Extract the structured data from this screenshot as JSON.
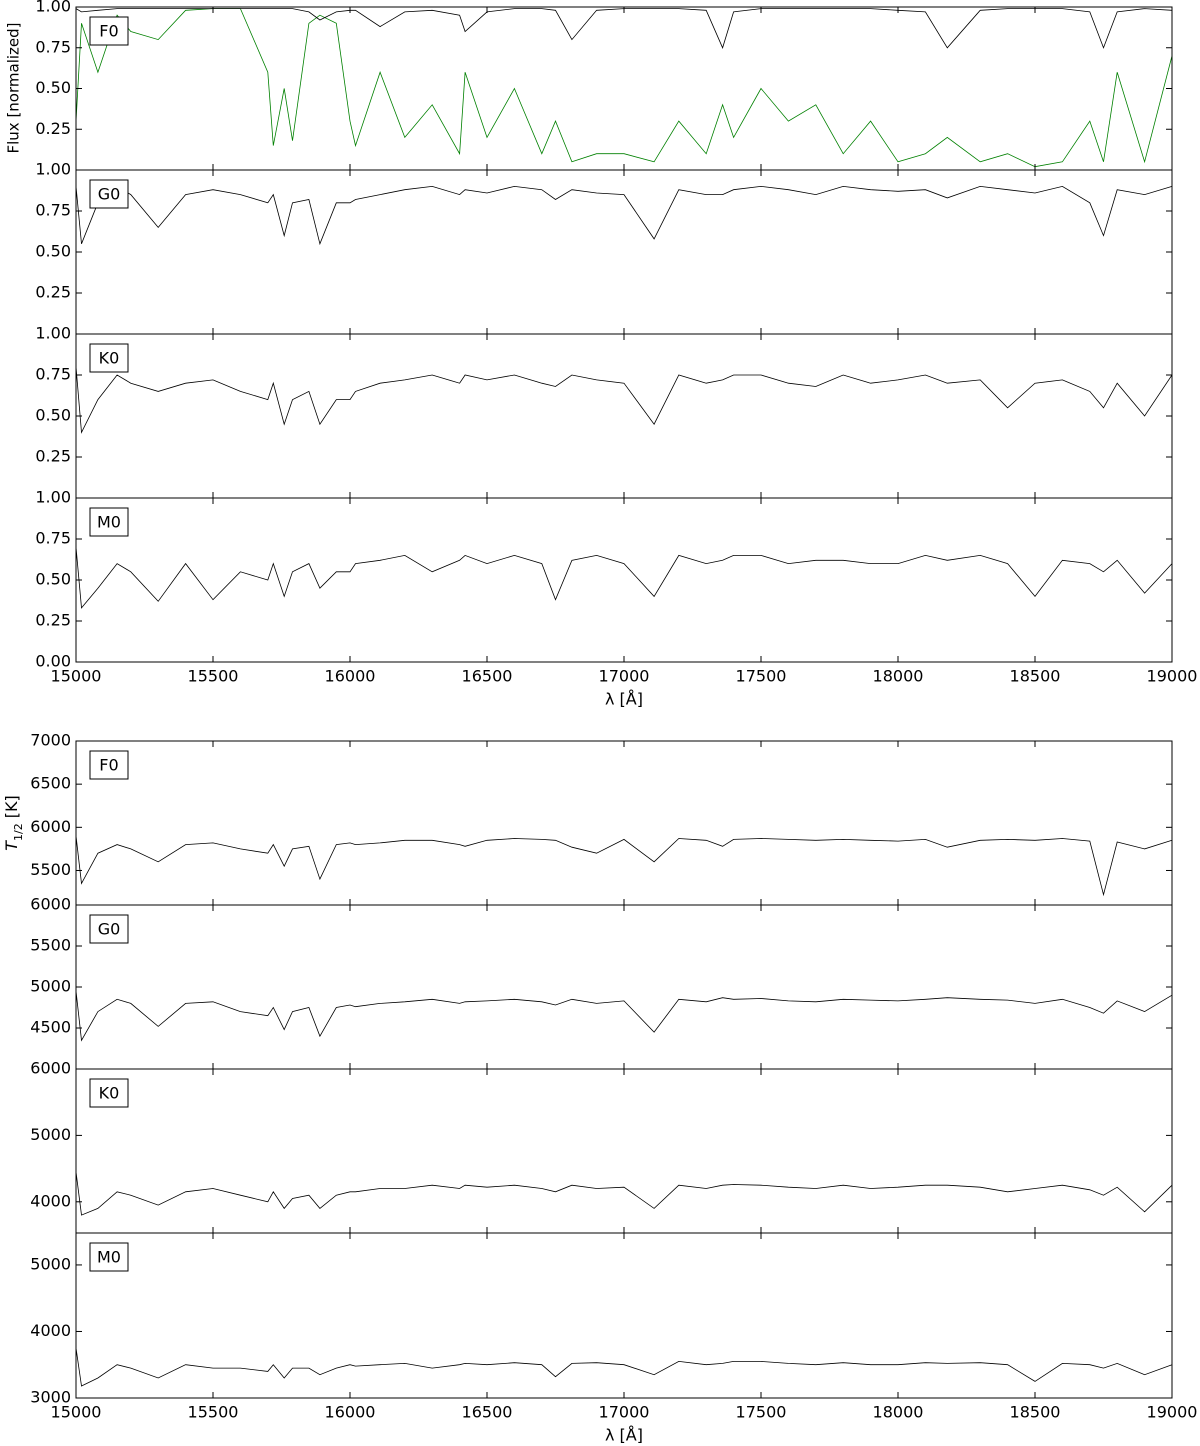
{
  "chart_data": [
    {
      "type": "line",
      "label": "F0",
      "ylabel": "Flux [normalized]",
      "x": [
        15000,
        15020,
        15080,
        15150,
        15200,
        15300,
        15400,
        15500,
        15600,
        15700,
        15720,
        15760,
        15790,
        15850,
        15890,
        15950,
        16000,
        16020,
        16110,
        16200,
        16300,
        16400,
        16420,
        16500,
        16600,
        16700,
        16750,
        16810,
        16900,
        17000,
        17110,
        17200,
        17300,
        17360,
        17400,
        17500,
        17600,
        17700,
        17800,
        17900,
        18000,
        18100,
        18180,
        18300,
        18400,
        18500,
        18600,
        18700,
        18750,
        18800,
        18900,
        19000
      ],
      "series": [
        {
          "color": "#008000",
          "values": [
            0.3,
            0.9,
            0.6,
            0.95,
            0.85,
            0.8,
            0.98,
            0.99,
            0.99,
            0.6,
            0.15,
            0.5,
            0.18,
            0.9,
            0.95,
            0.9,
            0.3,
            0.15,
            0.6,
            0.2,
            0.4,
            0.1,
            0.6,
            0.2,
            0.5,
            0.1,
            0.3,
            0.05,
            0.1,
            0.1,
            0.05,
            0.3,
            0.1,
            0.4,
            0.2,
            0.5,
            0.3,
            0.4,
            0.1,
            0.3,
            0.05,
            0.1,
            0.2,
            0.05,
            0.1,
            0.02,
            0.05,
            0.3,
            0.05,
            0.6,
            0.05,
            0.7
          ]
        },
        {
          "color": "#000000",
          "values": [
            0.99,
            0.97,
            0.98,
            0.99,
            0.99,
            0.99,
            0.99,
            0.99,
            0.99,
            0.99,
            0.99,
            0.99,
            0.99,
            0.97,
            0.92,
            0.97,
            0.98,
            0.98,
            0.88,
            0.97,
            0.98,
            0.95,
            0.85,
            0.97,
            0.99,
            0.99,
            0.98,
            0.8,
            0.98,
            0.99,
            0.99,
            0.99,
            0.98,
            0.75,
            0.97,
            0.99,
            0.99,
            0.99,
            0.99,
            0.99,
            0.98,
            0.97,
            0.75,
            0.98,
            0.99,
            0.99,
            0.99,
            0.97,
            0.75,
            0.97,
            0.99,
            0.98
          ]
        }
      ],
      "xlim": [
        15000,
        19000
      ],
      "xticks": [
        15000,
        15500,
        16000,
        16500,
        17000,
        17500,
        18000,
        18500,
        19000
      ],
      "ylim": [
        0,
        1
      ],
      "yticks": [
        0.25,
        {
          "value": 0.5,
          "label": "0.50"
        },
        0.75,
        {
          "value": 1,
          "label": "1.00"
        }
      ]
    },
    {
      "type": "line",
      "label": "G0",
      "x": [
        15000,
        15020,
        15080,
        15150,
        15200,
        15300,
        15400,
        15500,
        15600,
        15700,
        15720,
        15760,
        15790,
        15850,
        15890,
        15950,
        16000,
        16020,
        16110,
        16200,
        16300,
        16400,
        16420,
        16500,
        16600,
        16700,
        16750,
        16810,
        16900,
        17000,
        17110,
        17200,
        17300,
        17360,
        17400,
        17500,
        17600,
        17700,
        17800,
        17900,
        18000,
        18100,
        18180,
        18300,
        18400,
        18500,
        18600,
        18700,
        18750,
        18800,
        18900,
        19000
      ],
      "series": [
        {
          "color": "#000000",
          "values": [
            0.9,
            0.55,
            0.8,
            0.9,
            0.85,
            0.65,
            0.85,
            0.88,
            0.85,
            0.8,
            0.85,
            0.6,
            0.8,
            0.82,
            0.55,
            0.8,
            0.8,
            0.82,
            0.85,
            0.88,
            0.9,
            0.85,
            0.88,
            0.86,
            0.9,
            0.88,
            0.82,
            0.88,
            0.86,
            0.85,
            0.58,
            0.88,
            0.85,
            0.85,
            0.88,
            0.9,
            0.88,
            0.85,
            0.9,
            0.88,
            0.87,
            0.88,
            0.83,
            0.9,
            0.88,
            0.86,
            0.9,
            0.8,
            0.6,
            0.88,
            0.85,
            0.9
          ]
        }
      ],
      "xlim": [
        15000,
        19000
      ],
      "xticks": [
        15000,
        15500,
        16000,
        16500,
        17000,
        17500,
        18000,
        18500,
        19000
      ],
      "ylim": [
        0,
        1
      ],
      "yticks": [
        0.25,
        {
          "value": 0.5,
          "label": "0.50"
        },
        0.75,
        {
          "value": 1,
          "label": "1.00"
        }
      ]
    },
    {
      "type": "line",
      "label": "K0",
      "x": [
        15000,
        15020,
        15080,
        15150,
        15200,
        15300,
        15400,
        15500,
        15600,
        15700,
        15720,
        15760,
        15790,
        15850,
        15890,
        15950,
        16000,
        16020,
        16110,
        16200,
        16300,
        16400,
        16420,
        16500,
        16600,
        16700,
        16750,
        16810,
        16900,
        17000,
        17110,
        17200,
        17300,
        17360,
        17400,
        17500,
        17600,
        17700,
        17800,
        17900,
        18000,
        18100,
        18180,
        18300,
        18400,
        18500,
        18600,
        18700,
        18750,
        18800,
        18900,
        19000
      ],
      "series": [
        {
          "color": "#000000",
          "values": [
            0.8,
            0.4,
            0.6,
            0.75,
            0.7,
            0.65,
            0.7,
            0.72,
            0.65,
            0.6,
            0.7,
            0.45,
            0.6,
            0.65,
            0.45,
            0.6,
            0.6,
            0.65,
            0.7,
            0.72,
            0.75,
            0.7,
            0.75,
            0.72,
            0.75,
            0.7,
            0.68,
            0.75,
            0.72,
            0.7,
            0.45,
            0.75,
            0.7,
            0.72,
            0.75,
            0.75,
            0.7,
            0.68,
            0.75,
            0.7,
            0.72,
            0.75,
            0.7,
            0.72,
            0.55,
            0.7,
            0.72,
            0.65,
            0.55,
            0.7,
            0.5,
            0.75
          ]
        }
      ],
      "xlim": [
        15000,
        19000
      ],
      "xticks": [
        15000,
        15500,
        16000,
        16500,
        17000,
        17500,
        18000,
        18500,
        19000
      ],
      "ylim": [
        0,
        1
      ],
      "yticks": [
        0.25,
        {
          "value": 0.5,
          "label": "0.50"
        },
        0.75,
        {
          "value": 1,
          "label": "1.00"
        }
      ]
    },
    {
      "type": "line",
      "label": "M0",
      "xlabel": "λ [Å]",
      "x": [
        15000,
        15020,
        15080,
        15150,
        15200,
        15300,
        15400,
        15500,
        15600,
        15700,
        15720,
        15760,
        15790,
        15850,
        15890,
        15950,
        16000,
        16020,
        16110,
        16200,
        16300,
        16400,
        16420,
        16500,
        16600,
        16700,
        16750,
        16810,
        16900,
        17000,
        17110,
        17200,
        17300,
        17360,
        17400,
        17500,
        17600,
        17700,
        17800,
        17900,
        18000,
        18100,
        18180,
        18300,
        18400,
        18500,
        18600,
        18700,
        18750,
        18800,
        18900,
        19000
      ],
      "series": [
        {
          "color": "#000000",
          "values": [
            0.7,
            0.33,
            0.45,
            0.6,
            0.55,
            0.37,
            0.6,
            0.38,
            0.55,
            0.5,
            0.6,
            0.4,
            0.55,
            0.6,
            0.45,
            0.55,
            0.55,
            0.6,
            0.62,
            0.65,
            0.55,
            0.62,
            0.65,
            0.6,
            0.65,
            0.6,
            0.38,
            0.62,
            0.65,
            0.6,
            0.4,
            0.65,
            0.6,
            0.62,
            0.65,
            0.65,
            0.6,
            0.62,
            0.62,
            0.6,
            0.6,
            0.65,
            0.62,
            0.65,
            0.6,
            0.4,
            0.62,
            0.6,
            0.55,
            0.62,
            0.42,
            0.6
          ]
        }
      ],
      "xlim": [
        15000,
        19000
      ],
      "xticks": [
        15000,
        15500,
        16000,
        16500,
        17000,
        17500,
        18000,
        18500,
        19000
      ],
      "ylim": [
        0,
        1
      ],
      "yticks": [
        {
          "value": 0,
          "label": "0.00"
        },
        0.25,
        {
          "value": 0.5,
          "label": "0.50"
        },
        0.75,
        {
          "value": 1,
          "label": "1.00"
        }
      ]
    },
    {
      "type": "line",
      "label": "F0",
      "ylabel": {
        "symbol": "T",
        "subscript": "1/2",
        "unit": "[K]"
      },
      "x": [
        15000,
        15020,
        15080,
        15150,
        15200,
        15300,
        15400,
        15500,
        15600,
        15700,
        15720,
        15760,
        15790,
        15850,
        15890,
        15950,
        16000,
        16020,
        16110,
        16200,
        16300,
        16400,
        16420,
        16500,
        16600,
        16700,
        16750,
        16810,
        16900,
        17000,
        17110,
        17200,
        17300,
        17360,
        17400,
        17500,
        17600,
        17700,
        17800,
        17900,
        18000,
        18100,
        18180,
        18300,
        18400,
        18500,
        18600,
        18700,
        18750,
        18800,
        18900,
        19000
      ],
      "series": [
        {
          "color": "#000000",
          "values": [
            5900,
            5350,
            5700,
            5800,
            5750,
            5600,
            5800,
            5820,
            5750,
            5700,
            5800,
            5550,
            5750,
            5780,
            5400,
            5800,
            5820,
            5800,
            5820,
            5850,
            5850,
            5800,
            5780,
            5850,
            5870,
            5860,
            5850,
            5770,
            5700,
            5860,
            5600,
            5870,
            5850,
            5780,
            5860,
            5870,
            5860,
            5850,
            5860,
            5850,
            5840,
            5860,
            5770,
            5850,
            5860,
            5850,
            5870,
            5840,
            5220,
            5830,
            5750,
            5850
          ]
        }
      ],
      "xlim": [
        15000,
        19000
      ],
      "xticks": [
        15000,
        15500,
        16000,
        16500,
        17000,
        17500,
        18000,
        18500,
        19000
      ],
      "ylim": [
        5100,
        7000
      ],
      "yticks": [
        5500,
        6000,
        6500,
        7000
      ]
    },
    {
      "type": "line",
      "label": "G0",
      "x": [
        15000,
        15020,
        15080,
        15150,
        15200,
        15300,
        15400,
        15500,
        15600,
        15700,
        15720,
        15760,
        15790,
        15850,
        15890,
        15950,
        16000,
        16020,
        16110,
        16200,
        16300,
        16400,
        16420,
        16500,
        16600,
        16700,
        16750,
        16810,
        16900,
        17000,
        17110,
        17200,
        17300,
        17360,
        17400,
        17500,
        17600,
        17700,
        17800,
        17900,
        18000,
        18100,
        18180,
        18300,
        18400,
        18500,
        18600,
        18700,
        18750,
        18800,
        18900,
        19000
      ],
      "series": [
        {
          "color": "#000000",
          "values": [
            4950,
            4350,
            4700,
            4850,
            4800,
            4520,
            4800,
            4820,
            4700,
            4650,
            4750,
            4480,
            4700,
            4750,
            4400,
            4750,
            4780,
            4760,
            4800,
            4820,
            4850,
            4800,
            4820,
            4830,
            4850,
            4820,
            4780,
            4850,
            4800,
            4830,
            4450,
            4850,
            4820,
            4870,
            4850,
            4860,
            4830,
            4820,
            4850,
            4840,
            4830,
            4850,
            4870,
            4850,
            4840,
            4800,
            4850,
            4750,
            4680,
            4830,
            4700,
            4900
          ]
        }
      ],
      "xlim": [
        15000,
        19000
      ],
      "xticks": [
        15000,
        15500,
        16000,
        16500,
        17000,
        17500,
        18000,
        18500,
        19000
      ],
      "ylim": [
        4000,
        6000
      ],
      "yticks": [
        4500,
        5000,
        5500,
        6000
      ]
    },
    {
      "type": "line",
      "label": "K0",
      "x": [
        15000,
        15020,
        15080,
        15150,
        15200,
        15300,
        15400,
        15500,
        15600,
        15700,
        15720,
        15760,
        15790,
        15850,
        15890,
        15950,
        16000,
        16020,
        16110,
        16200,
        16300,
        16400,
        16420,
        16500,
        16600,
        16700,
        16750,
        16810,
        16900,
        17000,
        17110,
        17200,
        17300,
        17360,
        17400,
        17500,
        17600,
        17700,
        17800,
        17900,
        18000,
        18100,
        18180,
        18300,
        18400,
        18500,
        18600,
        18700,
        18750,
        18800,
        18900,
        19000
      ],
      "series": [
        {
          "color": "#000000",
          "values": [
            4450,
            3800,
            3900,
            4150,
            4100,
            3950,
            4150,
            4200,
            4100,
            4000,
            4150,
            3900,
            4050,
            4100,
            3900,
            4100,
            4150,
            4150,
            4200,
            4200,
            4250,
            4200,
            4250,
            4220,
            4250,
            4200,
            4150,
            4250,
            4200,
            4220,
            3900,
            4250,
            4200,
            4250,
            4260,
            4250,
            4220,
            4200,
            4250,
            4200,
            4220,
            4250,
            4250,
            4220,
            4150,
            4200,
            4250,
            4180,
            4100,
            4220,
            3850,
            4250
          ]
        }
      ],
      "xlim": [
        15000,
        19000
      ],
      "xticks": [
        15000,
        15500,
        16000,
        16500,
        17000,
        17500,
        18000,
        18500,
        19000
      ],
      "ylim": [
        3530,
        6000
      ],
      "yticks": [
        4000,
        5000,
        6000
      ]
    },
    {
      "type": "line",
      "label": "M0",
      "xlabel": "λ [Å]",
      "x": [
        15000,
        15020,
        15080,
        15150,
        15200,
        15300,
        15400,
        15500,
        15600,
        15700,
        15720,
        15760,
        15790,
        15850,
        15890,
        15950,
        16000,
        16020,
        16110,
        16200,
        16300,
        16400,
        16420,
        16500,
        16600,
        16700,
        16750,
        16810,
        16900,
        17000,
        17110,
        17200,
        17300,
        17360,
        17400,
        17500,
        17600,
        17700,
        17800,
        17900,
        18000,
        18100,
        18180,
        18300,
        18400,
        18500,
        18600,
        18700,
        18750,
        18800,
        18900,
        19000
      ],
      "series": [
        {
          "color": "#000000",
          "values": [
            3750,
            3180,
            3300,
            3500,
            3450,
            3300,
            3500,
            3450,
            3450,
            3400,
            3500,
            3300,
            3450,
            3450,
            3350,
            3450,
            3500,
            3480,
            3500,
            3520,
            3450,
            3500,
            3520,
            3500,
            3530,
            3500,
            3320,
            3520,
            3530,
            3500,
            3350,
            3550,
            3500,
            3520,
            3550,
            3550,
            3520,
            3500,
            3530,
            3500,
            3500,
            3530,
            3520,
            3530,
            3500,
            3250,
            3520,
            3500,
            3450,
            3520,
            3350,
            3500
          ]
        }
      ],
      "xlim": [
        15000,
        19000
      ],
      "xticks": [
        15000,
        15500,
        16000,
        16500,
        17000,
        17500,
        18000,
        18500,
        19000
      ],
      "ylim": [
        3000,
        5480
      ],
      "yticks": [
        3000,
        4000,
        5000
      ]
    }
  ]
}
